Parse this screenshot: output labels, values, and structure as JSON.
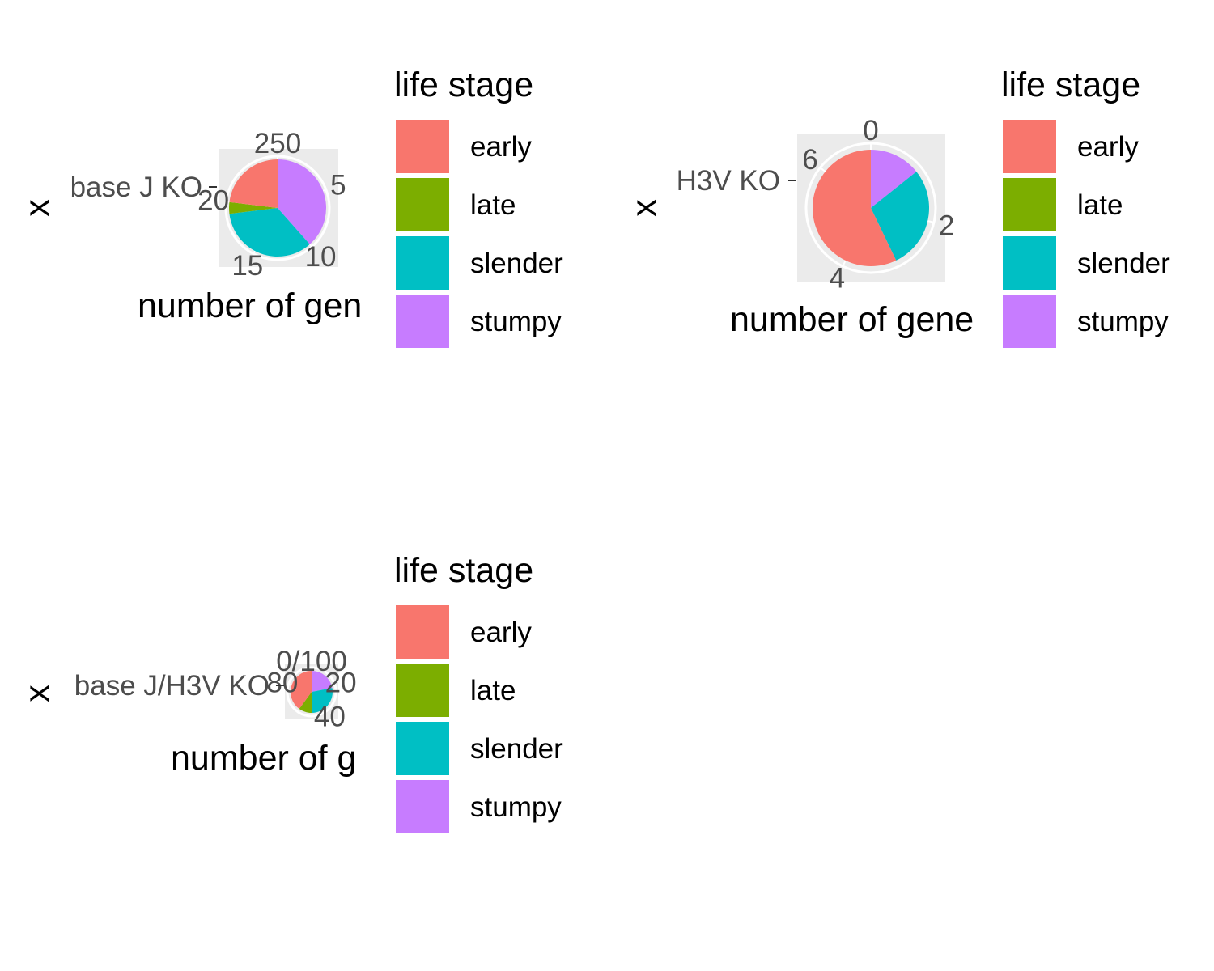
{
  "legend": {
    "title": "life stage",
    "items": [
      {
        "label": "early",
        "color": "#F8766D"
      },
      {
        "label": "late",
        "color": "#7CAE00"
      },
      {
        "label": "slender",
        "color": "#00BFC4"
      },
      {
        "label": "stumpy",
        "color": "#C77CFF"
      }
    ]
  },
  "panel_background": "#EBEBEB",
  "gridline_color": "#FFFFFF",
  "chart_data": [
    {
      "type": "pie",
      "category_label": "base J KO",
      "x_axis_title": "x",
      "y_axis_title": "number of gen",
      "theta_max": 26,
      "theta_ticks": [
        {
          "value": 0,
          "label": "250"
        },
        {
          "value": 5,
          "label": "5"
        },
        {
          "value": 10,
          "label": "10"
        },
        {
          "value": 15,
          "label": "15"
        },
        {
          "value": 20,
          "label": "20"
        }
      ],
      "series": [
        {
          "name": "stumpy",
          "value": 10
        },
        {
          "name": "slender",
          "value": 9
        },
        {
          "name": "late",
          "value": 1
        },
        {
          "name": "early",
          "value": 6
        }
      ]
    },
    {
      "type": "pie",
      "category_label": "H3V KO",
      "x_axis_title": "x",
      "y_axis_title": "number of gene",
      "theta_max": 7,
      "theta_ticks": [
        {
          "value": 0,
          "label": "0"
        },
        {
          "value": 2,
          "label": "2"
        },
        {
          "value": 4,
          "label": "4"
        },
        {
          "value": 6,
          "label": "6"
        }
      ],
      "series": [
        {
          "name": "stumpy",
          "value": 1
        },
        {
          "name": "slender",
          "value": 2
        },
        {
          "name": "late",
          "value": 0
        },
        {
          "name": "early",
          "value": 4
        }
      ]
    },
    {
      "type": "pie",
      "category_label": "base J/H3V KO",
      "x_axis_title": "x",
      "y_axis_title": "number of g",
      "theta_max": 100,
      "theta_ticks": [
        {
          "value": 0,
          "label": "0/100"
        },
        {
          "value": 20,
          "label": "20"
        },
        {
          "value": 40,
          "label": "40"
        },
        {
          "value": 80,
          "label": "80"
        }
      ],
      "series": [
        {
          "name": "stumpy",
          "value": 22
        },
        {
          "name": "slender",
          "value": 28
        },
        {
          "name": "late",
          "value": 10
        },
        {
          "name": "early",
          "value": 40
        }
      ]
    }
  ]
}
